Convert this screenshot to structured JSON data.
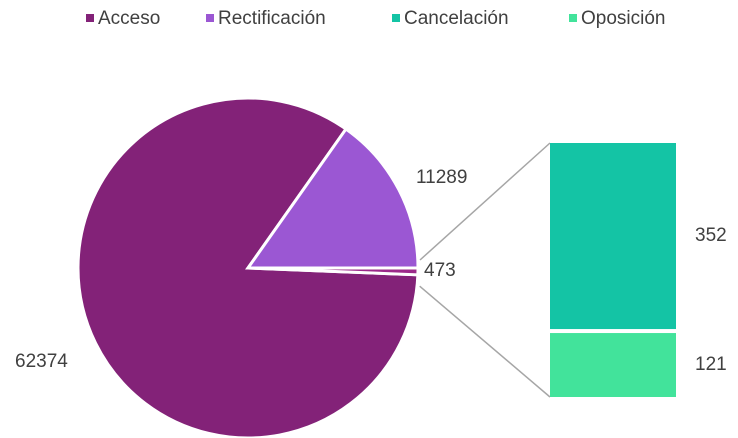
{
  "chart_data": {
    "type": "bar-of-pie",
    "categories": [
      "Acceso",
      "Rectificación",
      "Cancelación",
      "Oposición"
    ],
    "values": [
      62374,
      11289,
      352,
      121
    ],
    "colors": [
      "#832278",
      "#9b57d3",
      "#14c4a5",
      "#42e39b"
    ],
    "other_value": 473,
    "other_color": "#9c2a8a",
    "legend": "top"
  }
}
